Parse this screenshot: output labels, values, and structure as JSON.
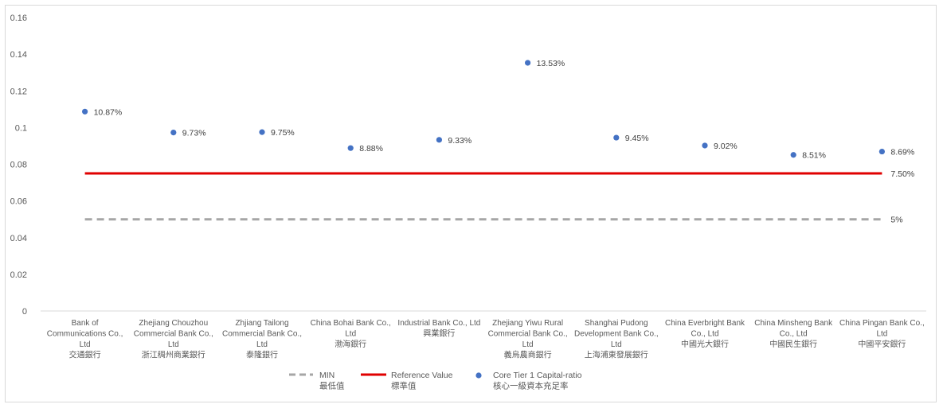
{
  "chart_data": {
    "type": "scatter",
    "ylim": [
      0,
      0.16
    ],
    "yticks": [
      "0",
      "0.02",
      "0.04",
      "0.06",
      "0.08",
      "0.1",
      "0.12",
      "0.14",
      "0.16"
    ],
    "grid": false,
    "legend_position": "bottom",
    "categories": [
      [
        "Bank of",
        "Communications Co.,",
        "Ltd",
        "交通銀行"
      ],
      [
        "Zhejiang Chouzhou",
        "Commercial Bank Co.,",
        "Ltd",
        "浙江稠州商業銀行"
      ],
      [
        "Zhjiang Tailong",
        "Commercial Bank Co.,",
        "Ltd",
        "泰隆銀行"
      ],
      [
        "China Bohai Bank Co.,",
        "Ltd",
        "渤海銀行"
      ],
      [
        "Industrial Bank Co., Ltd",
        "興業銀行"
      ],
      [
        "Zhejiang Yiwu Rural",
        "Commercial Bank Co.,",
        "Ltd",
        "義烏農商銀行"
      ],
      [
        "Shanghai Pudong",
        "Development Bank Co.,",
        "Ltd",
        "上海浦東發展銀行"
      ],
      [
        "China Everbright Bank",
        "Co., Ltd",
        "中國光大銀行"
      ],
      [
        "China Minsheng Bank",
        "Co., Ltd",
        "中國民生銀行"
      ],
      [
        "China Pingan Bank Co.,",
        "Ltd",
        "中國平安銀行"
      ]
    ],
    "series": [
      {
        "name": [
          "Core Tier 1 Capital-ratio",
          "核心一級資本充足率"
        ],
        "kind": "scatter",
        "color": "#4472c4",
        "values": [
          0.1087,
          0.0973,
          0.0975,
          0.0888,
          0.0933,
          0.1353,
          0.0945,
          0.0902,
          0.0851,
          0.0869
        ],
        "labels": [
          "10.87%",
          "9.73%",
          "9.75%",
          "8.88%",
          "9.33%",
          "13.53%",
          "9.45%",
          "9.02%",
          "8.51%",
          "8.69%"
        ]
      },
      {
        "name": [
          "Reference Value",
          "標準值"
        ],
        "kind": "line",
        "color": "#e00000",
        "value": 0.075,
        "end_label": "7.50%"
      },
      {
        "name": [
          "MIN",
          "最低值"
        ],
        "kind": "dashed-line",
        "color": "#a6a6a6",
        "value": 0.05,
        "end_label": "5%"
      }
    ]
  }
}
